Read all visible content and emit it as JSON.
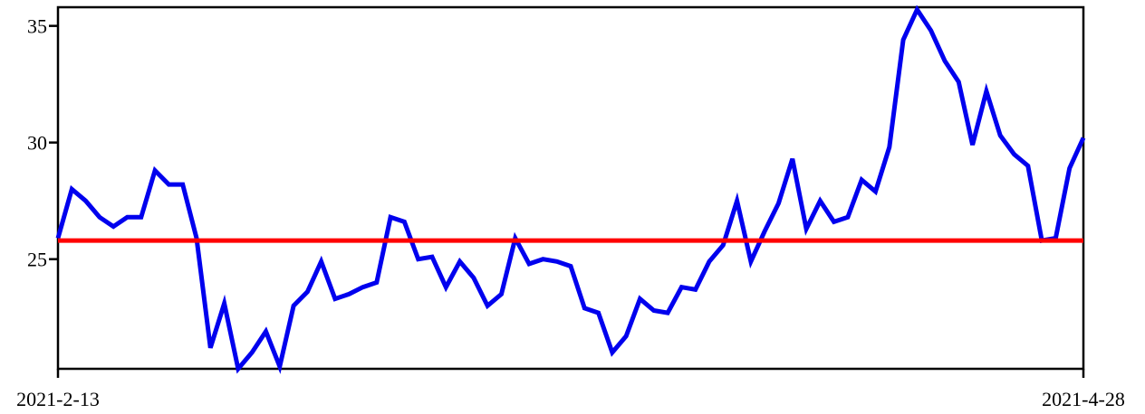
{
  "chart_data": {
    "type": "line",
    "title": "",
    "xlabel": "",
    "ylabel": "",
    "x_tick_labels": [
      "2021-2-13",
      "2021-4-28"
    ],
    "y_ticks": [
      25,
      30,
      35
    ],
    "y_tick_labels": [
      "25",
      "30",
      "35"
    ],
    "ylim": [
      20.3,
      35.8
    ],
    "grid": false,
    "legend": "none",
    "series": [
      {
        "color": "#0000ee",
        "values": [
          25.9,
          28.0,
          27.5,
          26.8,
          26.4,
          26.8,
          26.8,
          28.8,
          28.2,
          28.2,
          25.9,
          21.2,
          23.1,
          20.3,
          21.0,
          21.9,
          20.4,
          23.0,
          23.6,
          24.9,
          23.3,
          23.5,
          23.8,
          24.0,
          26.8,
          26.6,
          25.0,
          25.1,
          23.8,
          24.9,
          24.2,
          23.0,
          23.5,
          25.9,
          24.8,
          25.0,
          24.9,
          24.7,
          22.9,
          22.7,
          21.0,
          21.7,
          23.3,
          22.8,
          22.7,
          23.8,
          23.7,
          24.9,
          25.6,
          27.5,
          24.9,
          26.2,
          27.4,
          29.3,
          26.3,
          27.5,
          26.6,
          26.8,
          28.4,
          27.9,
          29.8,
          34.4,
          35.7,
          34.8,
          33.5,
          32.6,
          29.9,
          32.2,
          30.3,
          29.5,
          29.0,
          25.8,
          25.9,
          28.9,
          30.2
        ]
      }
    ],
    "reference_line": {
      "value": 25.8,
      "color": "#ff0000"
    }
  }
}
